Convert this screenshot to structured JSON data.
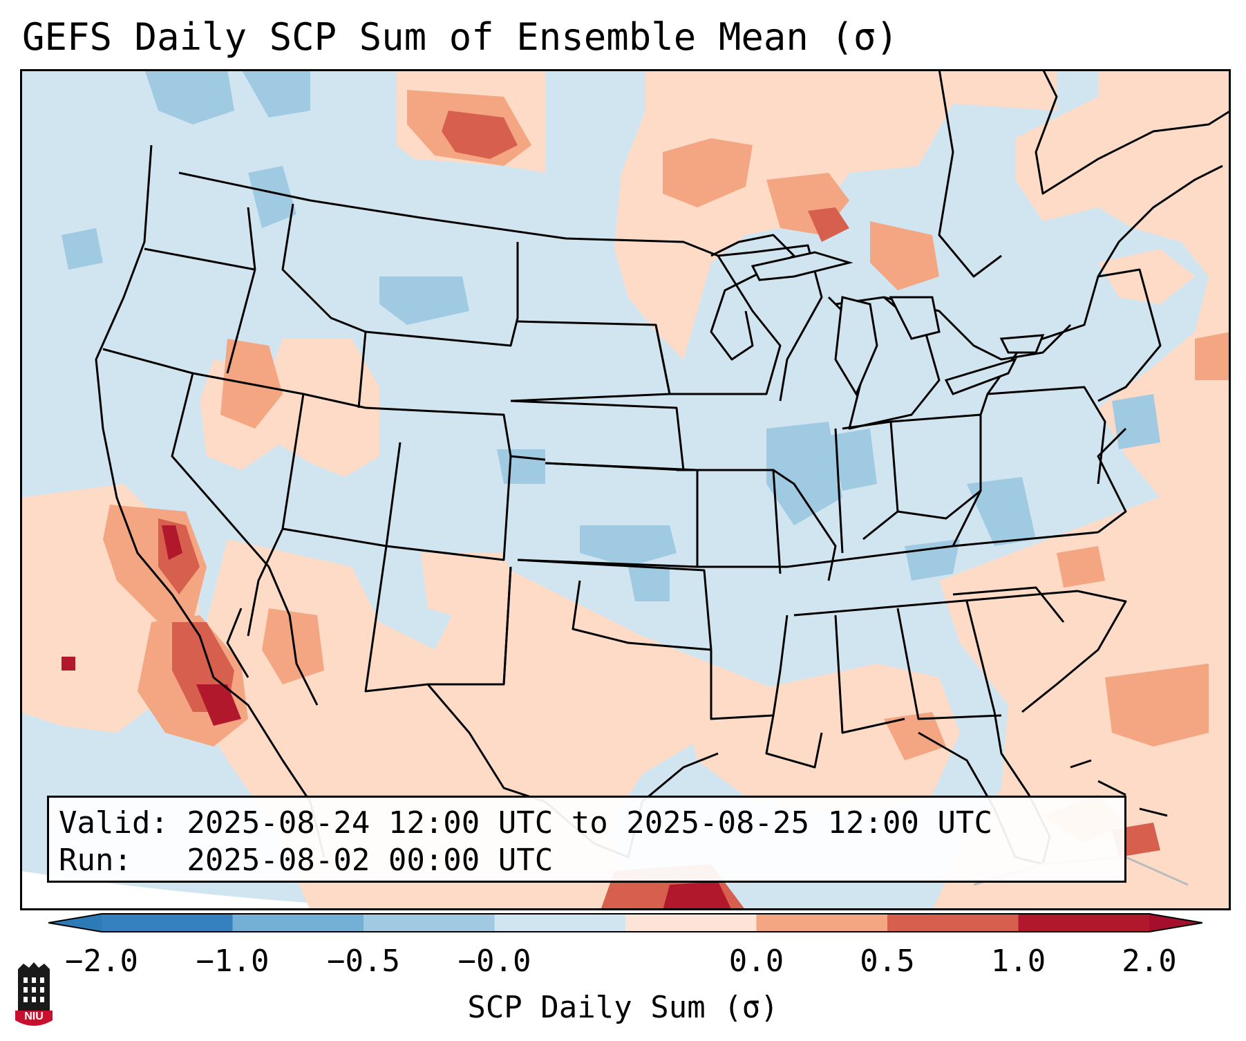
{
  "title_text": "GEFS Daily SCP Sum of Ensemble Mean (σ)",
  "map": {
    "region": "Continental United States, northern Mexico, Gulf of Mexico",
    "colors": {
      "strong_neg": "#2c7bb6",
      "mod_neg": "#74afd6",
      "weak_neg": "#9fcae2",
      "near_neg": "#d1e5f0",
      "near_pos": "#fddbc7",
      "weak_pos": "#f4a582",
      "mod_pos": "#d6604d",
      "strong_pos": "#b2182b",
      "boundary": "#000000"
    }
  },
  "info": {
    "valid_line": "Valid: 2025-08-24 12:00 UTC to 2025-08-25 12:00 UTC",
    "run_line": "Run:   2025-08-02 00:00 UTC"
  },
  "colorbar": {
    "label": "SCP Daily Sum (σ)",
    "ticks": [
      "−2.0",
      "−1.0",
      "−0.5",
      "−0.0",
      "0.0",
      "0.5",
      "1.0",
      "2.0"
    ],
    "bins": [
      {
        "color": "#3581bf"
      },
      {
        "color": "#74afd6"
      },
      {
        "color": "#9fcae2"
      },
      {
        "color": "#d1e5f0"
      },
      {
        "color": "#fde4d8"
      },
      {
        "color": "#f4a582"
      },
      {
        "color": "#d6604d"
      },
      {
        "color": "#b2182b"
      }
    ],
    "extend_low_color": "#2c7bb6",
    "extend_high_color": "#a50f2d"
  },
  "logo": {
    "text": "NIU",
    "color": "#c8102e"
  }
}
